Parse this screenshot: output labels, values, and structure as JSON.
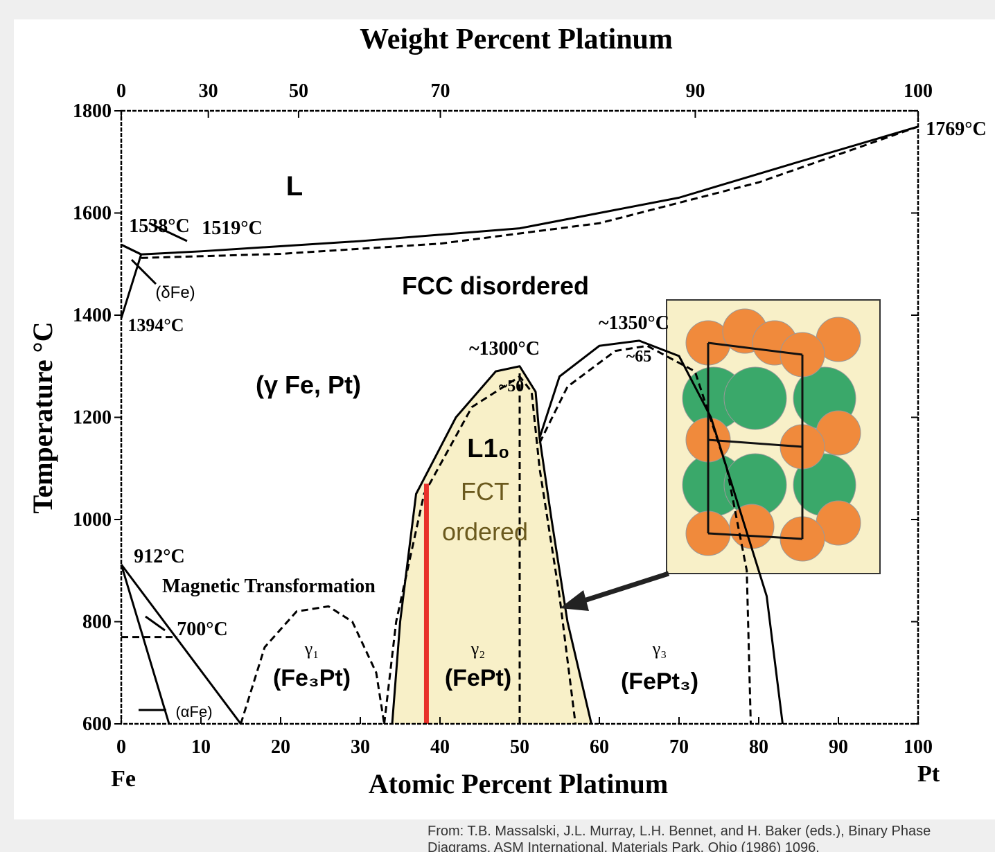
{
  "chart_data": {
    "type": "phase-diagram",
    "title": "Weight Percent Platinum",
    "x_label": "Atomic Percent Platinum",
    "y_label": "Temperature °C",
    "xlim": [
      0,
      100
    ],
    "ylim": [
      600,
      1800
    ],
    "xticks": [
      0,
      10,
      20,
      30,
      40,
      50,
      60,
      70,
      80,
      90,
      100
    ],
    "yticks": [
      600,
      800,
      1000,
      1200,
      1400,
      1600,
      1800
    ],
    "x2ticks": [
      0,
      30,
      50,
      70,
      90,
      100
    ],
    "series": [
      {
        "color": "#000000",
        "dash": false,
        "x": [
          0,
          2.5,
          10,
          30,
          50,
          70,
          85,
          100
        ],
        "values": [
          1538,
          1519,
          1525,
          1545,
          1570,
          1630,
          1700,
          1769
        ]
      },
      {
        "color": "#000000",
        "dash": true,
        "x": [
          2.5,
          20,
          40,
          60,
          80,
          100
        ],
        "values": [
          1512,
          1520,
          1540,
          1580,
          1660,
          1769
        ]
      },
      {
        "color": "#000000",
        "dash": false,
        "x": [
          0,
          2.5,
          0
        ],
        "values": [
          1538,
          1519,
          1394
        ]
      },
      {
        "color": "#000000",
        "dash": false,
        "fill": "#f8f0c8",
        "x": [
          34,
          35,
          37,
          42,
          47,
          50,
          52,
          52.5,
          54,
          56,
          59
        ],
        "values": [
          600,
          800,
          1050,
          1200,
          1290,
          1300,
          1250,
          1160,
          1000,
          800,
          600
        ]
      },
      {
        "color": "#000000",
        "dash": true,
        "x": [
          33,
          34.5,
          38,
          44,
          50,
          51.5,
          52.5,
          55,
          57
        ],
        "values": [
          600,
          800,
          1050,
          1220,
          1280,
          1250,
          1100,
          850,
          600
        ]
      },
      {
        "color": "#000000",
        "dash": true,
        "x": [
          50,
          50
        ],
        "values": [
          600,
          1290
        ]
      },
      {
        "color": "#e8312a",
        "dash": false,
        "width": 7,
        "x": [
          38.3,
          38.3
        ],
        "values": [
          600,
          1070
        ]
      },
      {
        "color": "#000000",
        "dash": false,
        "x": [
          52.5,
          55,
          60,
          65,
          70,
          74,
          78,
          81,
          83
        ],
        "values": [
          1160,
          1280,
          1340,
          1350,
          1320,
          1200,
          1000,
          850,
          600
        ]
      },
      {
        "color": "#000000",
        "dash": true,
        "x": [
          52.5,
          56,
          62,
          66,
          72,
          76,
          78.5,
          79
        ],
        "values": [
          1150,
          1260,
          1330,
          1340,
          1290,
          1100,
          900,
          600
        ]
      },
      {
        "color": "#000000",
        "dash": true,
        "x": [
          15,
          18,
          22,
          26,
          29,
          32,
          33
        ],
        "values": [
          600,
          750,
          820,
          830,
          800,
          700,
          600
        ]
      },
      {
        "color": "#000000",
        "dash": false,
        "x": [
          0,
          15
        ],
        "values": [
          912,
          600
        ]
      },
      {
        "color": "#000000",
        "dash": false,
        "x": [
          0,
          6
        ],
        "values": [
          912,
          600
        ]
      },
      {
        "color": "#000000",
        "dash": true,
        "x": [
          0,
          7
        ],
        "values": [
          770,
          770
        ]
      }
    ],
    "annotations": [
      "L",
      "FCC disordered",
      "(γ Fe, Pt)",
      "L1₀",
      "FCT",
      "ordered",
      "1538°C",
      "1519°C",
      "(δFe)",
      "1394°C",
      "~1300°C",
      "~50",
      "~1350°C",
      "~65",
      "1769°C",
      "912°C",
      "Magnetic Transformation",
      "700°C",
      "(αFe)",
      "γ₁",
      "(Fe₃Pt)",
      "γ₂",
      "(FePt)",
      "γ₃",
      "(FePt₃)",
      "Fe",
      "Pt"
    ],
    "source": "From: T.B. Massalski, J.L. Murray, L.H. Bennet, and H. Baker (eds.), Binary Phase Diagrams, ASM International, Materials Park, Ohio (1986) 1096."
  }
}
